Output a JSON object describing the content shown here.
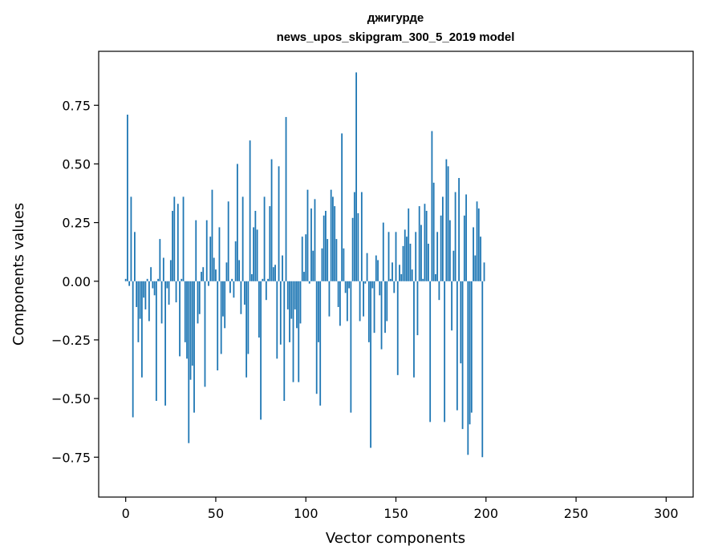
{
  "chart_data": {
    "type": "bar",
    "title_lines": [
      "джигурде",
      "news_upos_skipgram_300_5_2019 model"
    ],
    "xlabel": "Vector components",
    "ylabel": "Components values",
    "xlim": [
      -15,
      315
    ],
    "ylim": [
      -0.92,
      0.98
    ],
    "xticks": [
      0,
      50,
      100,
      150,
      200,
      250,
      300
    ],
    "xtick_labels": [
      "0",
      "50",
      "100",
      "150",
      "200",
      "250",
      "300"
    ],
    "yticks": [
      0.75,
      0.5,
      0.25,
      0.0,
      -0.25,
      -0.5,
      -0.75
    ],
    "ytick_labels": [
      "0.75",
      "0.50",
      "0.25",
      "0.00",
      "−0.25",
      "−0.50",
      "−0.75"
    ],
    "bar_color": "#1f77b4",
    "values": [
      0.01,
      0.71,
      -0.02,
      0.36,
      -0.58,
      0.21,
      -0.11,
      -0.26,
      -0.16,
      -0.41,
      -0.07,
      -0.12,
      0.01,
      -0.17,
      0.06,
      -0.03,
      -0.06,
      -0.51,
      0.01,
      0.18,
      -0.18,
      0.1,
      -0.53,
      -0.03,
      -0.1,
      0.09,
      0.3,
      0.36,
      -0.09,
      0.33,
      -0.32,
      0.01,
      0.36,
      -0.26,
      -0.33,
      -0.69,
      -0.42,
      -0.36,
      -0.56,
      0.26,
      -0.18,
      -0.14,
      0.04,
      0.06,
      -0.45,
      0.26,
      -0.02,
      0.19,
      0.39,
      0.1,
      0.05,
      -0.38,
      0.23,
      -0.31,
      -0.15,
      -0.2,
      0.08,
      0.34,
      -0.05,
      0.01,
      -0.07,
      0.17,
      0.5,
      0.09,
      -0.14,
      0.36,
      -0.1,
      -0.41,
      -0.31,
      0.6,
      0.03,
      0.23,
      0.3,
      0.22,
      -0.24,
      -0.59,
      0.01,
      0.36,
      -0.08,
      0.01,
      0.32,
      0.52,
      0.06,
      0.07,
      -0.33,
      0.49,
      -0.27,
      0.11,
      -0.51,
      0.7,
      -0.12,
      -0.26,
      -0.16,
      -0.43,
      -0.12,
      -0.2,
      -0.43,
      -0.18,
      0.19,
      0.04,
      0.2,
      0.39,
      -0.01,
      0.31,
      0.13,
      0.35,
      -0.48,
      -0.26,
      -0.53,
      0.14,
      0.28,
      0.3,
      0.18,
      -0.15,
      0.39,
      0.36,
      0.32,
      0.18,
      -0.11,
      -0.19,
      0.63,
      0.14,
      -0.05,
      -0.17,
      -0.03,
      -0.56,
      0.27,
      0.38,
      0.89,
      0.29,
      -0.17,
      0.38,
      -0.15,
      -0.01,
      0.12,
      -0.26,
      -0.71,
      -0.03,
      -0.22,
      0.11,
      0.09,
      -0.06,
      -0.29,
      0.25,
      -0.22,
      -0.17,
      0.21,
      0.01,
      0.08,
      -0.05,
      0.21,
      -0.4,
      0.07,
      0.03,
      0.15,
      0.22,
      0.19,
      0.31,
      0.16,
      0.05,
      -0.41,
      0.21,
      -0.23,
      0.32,
      0.24,
      0.01,
      0.33,
      0.3,
      0.16,
      -0.6,
      0.64,
      0.42,
      0.03,
      0.21,
      -0.08,
      0.28,
      0.36,
      -0.6,
      0.52,
      0.49,
      0.26,
      -0.21,
      0.13,
      0.38,
      -0.55,
      0.44,
      -0.35,
      -0.63,
      0.28,
      0.37,
      -0.74,
      -0.61,
      -0.56,
      0.23,
      0.11,
      0.34,
      0.31,
      0.19,
      -0.75,
      0.08
    ]
  }
}
